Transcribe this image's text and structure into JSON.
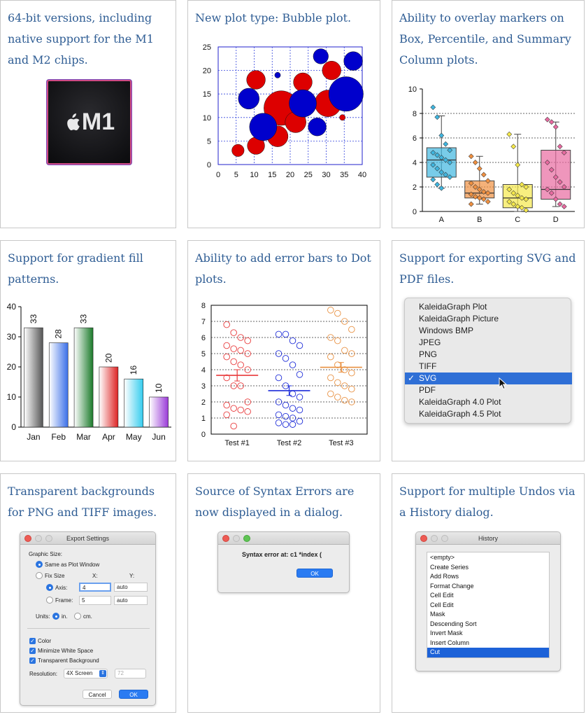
{
  "cards": [
    {
      "title": "64-bit versions, including native support for the M1 and M2 chips."
    },
    {
      "title": "New plot type: Bubble plot."
    },
    {
      "title": "Ability to overlay markers on Box, Percentile, and Summary Column plots."
    },
    {
      "title": "Support for gradient fill patterns."
    },
    {
      "title": "Ability to add error bars to Dot plots."
    },
    {
      "title": "Support for exporting SVG and PDF files."
    },
    {
      "title": "Transparent backgrounds for PNG and TIFF images."
    },
    {
      "title": "Source of Syntax Errors are now displayed in a dialog."
    },
    {
      "title": "Support for multiple Undos via a History dialog."
    }
  ],
  "chip": {
    "label": "M1"
  },
  "chart_data": [
    {
      "type": "scatter",
      "subtype": "bubble",
      "xlim": [
        0,
        40
      ],
      "ylim": [
        0,
        25
      ],
      "x_ticks": [
        "0",
        "5",
        "10",
        "15",
        "20",
        "25",
        "30",
        "35",
        "40"
      ],
      "y_ticks": [
        "0",
        "5",
        "10",
        "15",
        "20",
        "25"
      ],
      "grid": true,
      "series": [
        {
          "color": "#dd0000",
          "points": [
            {
              "x": 5.5,
              "y": 3,
              "r": 1.7
            },
            {
              "x": 10.5,
              "y": 4,
              "r": 2.4
            },
            {
              "x": 10.5,
              "y": 18,
              "r": 2.6
            },
            {
              "x": 16.5,
              "y": 6,
              "r": 2.9
            },
            {
              "x": 17.5,
              "y": 12,
              "r": 4.8
            },
            {
              "x": 21.5,
              "y": 9,
              "r": 2.9
            },
            {
              "x": 23.5,
              "y": 17.5,
              "r": 2.6
            },
            {
              "x": 30.5,
              "y": 13,
              "r": 3.7
            },
            {
              "x": 31.5,
              "y": 20,
              "r": 2.6
            },
            {
              "x": 34.5,
              "y": 10,
              "r": 0.8
            }
          ]
        },
        {
          "color": "#0000cc",
          "points": [
            {
              "x": 8.5,
              "y": 14,
              "r": 2.9
            },
            {
              "x": 12.5,
              "y": 8,
              "r": 3.8
            },
            {
              "x": 16.5,
              "y": 19,
              "r": 0.8
            },
            {
              "x": 23.5,
              "y": 13,
              "r": 3.8
            },
            {
              "x": 27.5,
              "y": 8,
              "r": 2.5
            },
            {
              "x": 28.5,
              "y": 23,
              "r": 2.1
            },
            {
              "x": 35.5,
              "y": 15,
              "r": 4.8
            },
            {
              "x": 37.5,
              "y": 22,
              "r": 2.6
            }
          ]
        }
      ]
    },
    {
      "type": "box",
      "categories": [
        "A",
        "B",
        "C",
        "D"
      ],
      "ylim": [
        0,
        10
      ],
      "y_ticks": [
        "0",
        "2",
        "4",
        "6",
        "8",
        "10"
      ],
      "series": [
        {
          "name": "A",
          "color": "#3fb6e0",
          "q1": 2.8,
          "median": 4.2,
          "q3": 5.2,
          "min": 1.9,
          "max": 7.8,
          "markers": [
            8.5,
            7.7,
            6.2,
            5.5,
            5.0,
            4.8,
            4.6,
            4.4,
            4.2,
            4.0,
            3.8,
            3.5,
            3.2,
            3.0,
            2.8,
            2.6,
            2.2,
            1.9
          ]
        },
        {
          "name": "B",
          "color": "#f09040",
          "q1": 1.1,
          "median": 1.5,
          "q3": 2.5,
          "min": 0.6,
          "max": 4.5,
          "markers": [
            4.5,
            4.0,
            3.5,
            3.0,
            2.5,
            2.3,
            2.0,
            1.8,
            1.6,
            1.5,
            1.4,
            1.2,
            1.1,
            1.0,
            0.8,
            0.6
          ]
        },
        {
          "name": "C",
          "color": "#f5e84a",
          "q1": 0.3,
          "median": 1.1,
          "q3": 2.2,
          "min": 0.0,
          "max": 6.3,
          "markers": [
            6.3,
            5.3,
            3.8,
            2.2,
            2.0,
            1.8,
            1.5,
            1.3,
            1.1,
            1.0,
            0.8,
            0.6,
            0.4,
            0.3,
            0.1
          ]
        },
        {
          "name": "D",
          "color": "#e86aa0",
          "q1": 1.0,
          "median": 1.8,
          "q3": 5.0,
          "min": 0.4,
          "max": 7.3,
          "markers": [
            7.5,
            7.3,
            6.9,
            5.3,
            4.8,
            4.0,
            3.4,
            2.8,
            2.4,
            2.0,
            1.8,
            1.5,
            1.0,
            0.6,
            0.4
          ]
        }
      ]
    },
    {
      "type": "bar",
      "categories": [
        "Jan",
        "Feb",
        "Mar",
        "Apr",
        "May",
        "Jun"
      ],
      "values": [
        33,
        28,
        33,
        20,
        16,
        10
      ],
      "ylim": [
        0,
        40
      ],
      "y_ticks": [
        "0",
        "10",
        "20",
        "30",
        "40"
      ],
      "colors": [
        "#555555",
        "#3a6fe8",
        "#1a7a2a",
        "#dd2222",
        "#33ccee",
        "#9a3ad8"
      ]
    },
    {
      "type": "scatter",
      "subtype": "dot",
      "categories": [
        "Test #1",
        "Test #2",
        "Test #3"
      ],
      "ylim": [
        0,
        8
      ],
      "y_ticks": [
        "0",
        "1",
        "2",
        "3",
        "4",
        "5",
        "6",
        "7",
        "8"
      ],
      "series": [
        {
          "name": "Test #1",
          "color": "#e8393a",
          "mean": 3.65,
          "err": 0.35,
          "points": [
            6.8,
            6.3,
            6.0,
            5.8,
            5.5,
            5.3,
            5.2,
            5.0,
            4.8,
            4.5,
            4.3,
            4.0,
            3.5,
            3.0,
            3.0,
            2.0,
            1.8,
            1.6,
            1.5,
            1.4,
            1.2,
            0.5
          ]
        },
        {
          "name": "Test #2",
          "color": "#1d2cd8",
          "mean": 2.7,
          "err": 0.3,
          "points": [
            6.2,
            6.2,
            5.8,
            5.5,
            5.0,
            4.7,
            4.3,
            3.7,
            3.5,
            3.0,
            2.5,
            2.3,
            2.0,
            1.8,
            1.6,
            1.5,
            1.2,
            1.1,
            1.0,
            0.8,
            0.7,
            0.6,
            0.6
          ]
        },
        {
          "name": "Test #3",
          "color": "#e89040",
          "mean": 4.15,
          "err": 0.3,
          "points": [
            7.7,
            7.5,
            7.0,
            6.5,
            6.0,
            5.8,
            5.2,
            5.0,
            4.8,
            4.3,
            4.0,
            3.8,
            3.5,
            3.2,
            3.0,
            2.8,
            2.5,
            2.3,
            2.1,
            2.0
          ]
        }
      ]
    }
  ],
  "export_menu": {
    "items": [
      "KaleidaGraph Plot",
      "KaleidaGraph Picture",
      "Windows BMP",
      "JPEG",
      "PNG",
      "TIFF",
      "SVG",
      "PDF",
      "KaleidaGraph 4.0 Plot",
      "KaleidaGraph 4.5 Plot"
    ],
    "selected_index": 6,
    "check": "✓"
  },
  "export_settings": {
    "title": "Export Settings",
    "graphic_size": "Graphic Size:",
    "same_as_plot": "Same as Plot Window",
    "fix_size": "Fix Size",
    "x_label": "X:",
    "y_label": "Y:",
    "axis_label": "Axis:",
    "axis_x": "4",
    "axis_y": "auto",
    "frame_label": "Frame:",
    "frame_x": "5",
    "frame_y": "auto",
    "units_label": "Units:",
    "units_in": "in.",
    "units_cm": "cm.",
    "color_label": "Color",
    "min_white": "Minimize White Space",
    "transparent": "Transparent Background",
    "resolution_label": "Resolution:",
    "resolution_value": "4X Screen",
    "resolution_dpi": "72",
    "cancel": "Cancel",
    "ok": "OK"
  },
  "syntax_dialog": {
    "message": "Syntax error at: c1 *index (",
    "ok": "OK"
  },
  "history_dialog": {
    "title": "History",
    "items": [
      "<empty>",
      "Create Series",
      "Add Rows",
      "Format Change",
      "Cell Edit",
      "Cell Edit",
      "Mask",
      "Descending Sort",
      "Invert Mask",
      "Insert Column",
      "Cut"
    ],
    "selected_index": 10
  }
}
